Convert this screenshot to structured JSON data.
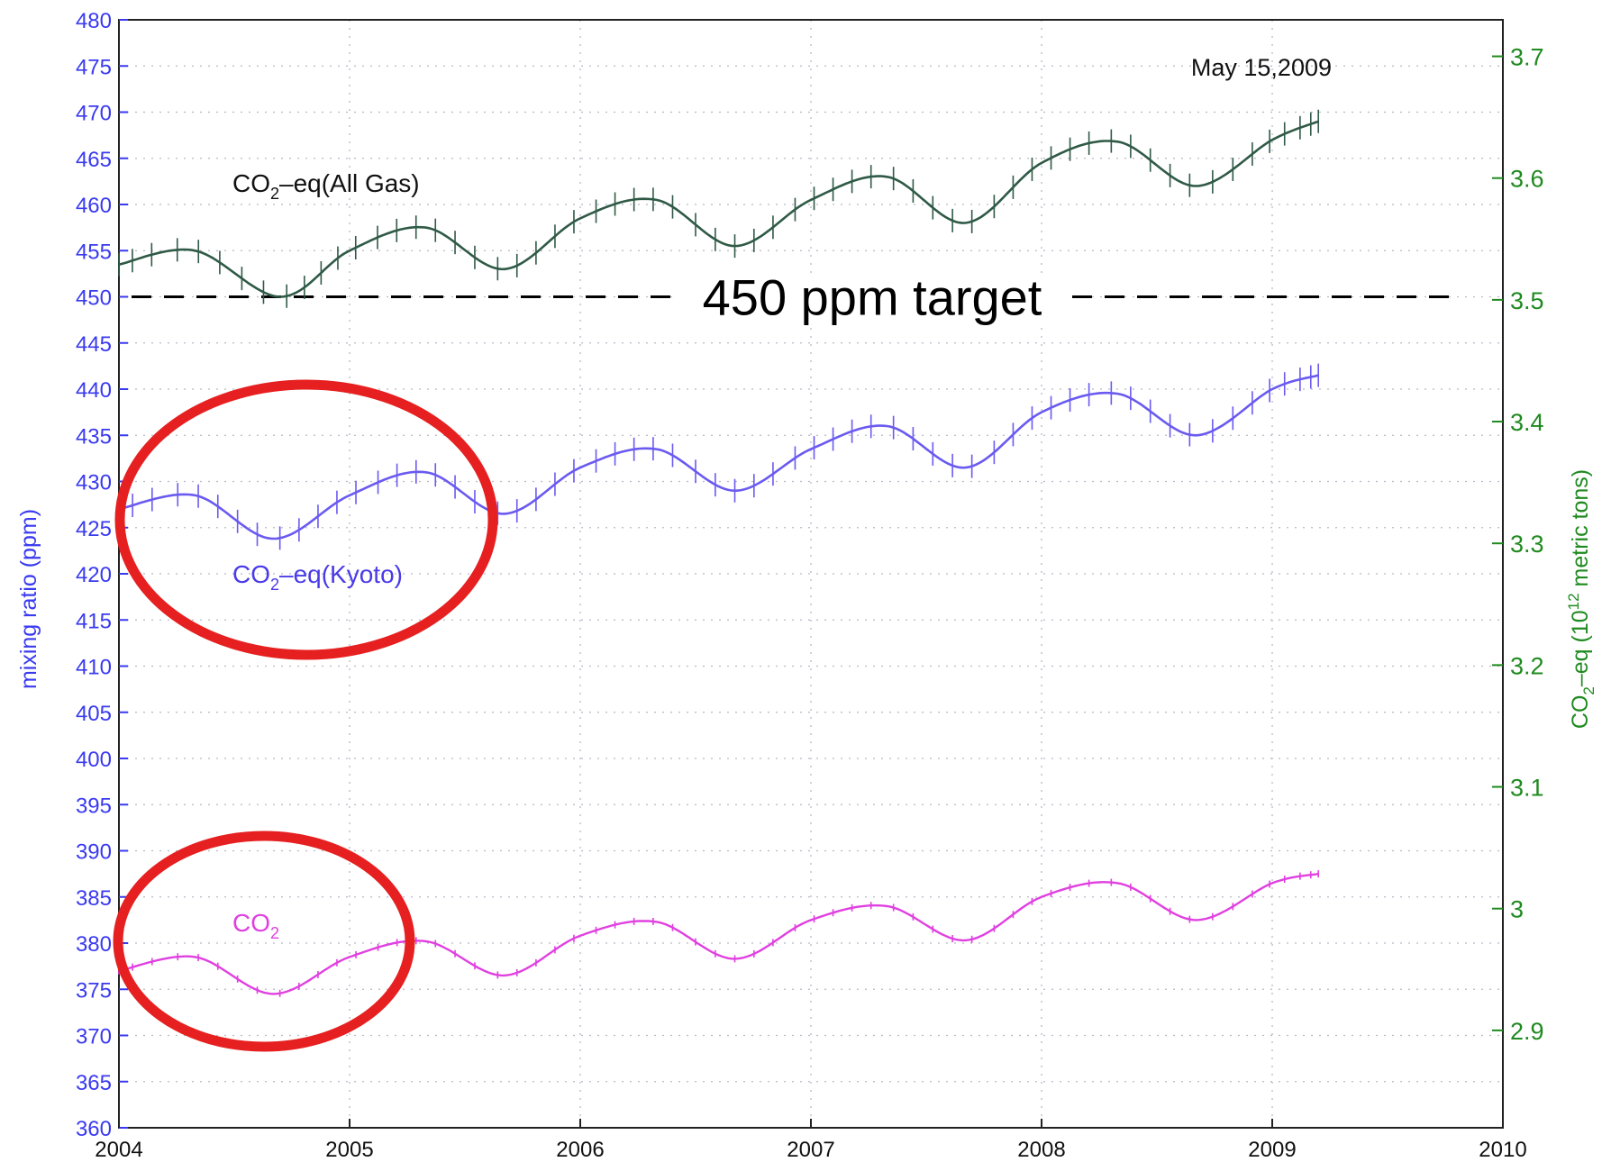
{
  "chart_data": {
    "type": "line",
    "date_label": "May 15,2009",
    "ylabel_left": "mixing ratio (ppm)",
    "ylabel_right": "CO2–eq (10^12 metric tons)",
    "xlim": [
      2004,
      2010
    ],
    "ylim": [
      360,
      480
    ],
    "ylim_right": [
      2.82,
      3.73
    ],
    "x_ticks": [
      "2004",
      "2005",
      "2006",
      "2007",
      "2008",
      "2009",
      "2010"
    ],
    "y_ticks": [
      360,
      365,
      370,
      375,
      380,
      385,
      390,
      395,
      400,
      405,
      410,
      415,
      420,
      425,
      430,
      435,
      440,
      445,
      450,
      455,
      460,
      465,
      470,
      475,
      480
    ],
    "y_ticks_right": [
      "2.9",
      "3",
      "3.1",
      "3.2",
      "3.3",
      "3.4",
      "3.5",
      "3.6",
      "3.7"
    ],
    "target": {
      "value": 450,
      "label": "450 ppm target"
    },
    "grid": true,
    "series": [
      {
        "name": "CO2–eq(All Gas)",
        "name_main": "CO",
        "name_sub": "2",
        "name_rest": "–eq(All Gas)",
        "color": "#2f5a46",
        "x": [
          2004.0,
          2004.33,
          2004.7,
          2005.0,
          2005.33,
          2005.67,
          2006.0,
          2006.33,
          2006.67,
          2007.0,
          2007.33,
          2007.67,
          2008.0,
          2008.33,
          2008.67,
          2009.0,
          2009.2
        ],
        "values": [
          453.5,
          455.0,
          450.0,
          455.0,
          457.5,
          453.0,
          458.5,
          460.5,
          455.5,
          460.5,
          463.0,
          458.0,
          464.5,
          466.8,
          462.0,
          467.0,
          469.0
        ]
      },
      {
        "name": "CO2–eq(Kyoto)",
        "name_main": "CO",
        "name_sub": "2",
        "name_rest": "–eq(Kyoto)",
        "color": "#6a5af0",
        "x": [
          2004.0,
          2004.33,
          2004.67,
          2005.0,
          2005.33,
          2005.67,
          2006.0,
          2006.33,
          2006.67,
          2007.0,
          2007.33,
          2007.67,
          2008.0,
          2008.33,
          2008.67,
          2009.0,
          2009.2
        ],
        "values": [
          427.0,
          428.5,
          423.8,
          428.5,
          431.0,
          426.5,
          431.5,
          433.5,
          429.0,
          433.5,
          436.0,
          431.5,
          437.5,
          439.5,
          435.0,
          440.0,
          441.5
        ]
      },
      {
        "name": "CO2",
        "name_main": "CO",
        "name_sub": "2",
        "name_rest": "",
        "color": "#e040e0",
        "x": [
          2004.0,
          2004.33,
          2004.67,
          2005.0,
          2005.33,
          2005.67,
          2006.0,
          2006.33,
          2006.67,
          2007.0,
          2007.33,
          2007.67,
          2008.0,
          2008.33,
          2008.67,
          2009.0,
          2009.2
        ],
        "values": [
          377.0,
          378.5,
          374.5,
          378.5,
          380.2,
          376.5,
          380.8,
          382.3,
          378.3,
          382.5,
          384.0,
          380.3,
          385.0,
          386.5,
          382.5,
          386.5,
          387.5
        ]
      }
    ],
    "annotations": [
      {
        "shape": "ellipse",
        "color": "#e62020",
        "around_series": "CO2–eq(Kyoto)"
      },
      {
        "shape": "ellipse",
        "color": "#e62020",
        "around_series": "CO2"
      }
    ]
  }
}
